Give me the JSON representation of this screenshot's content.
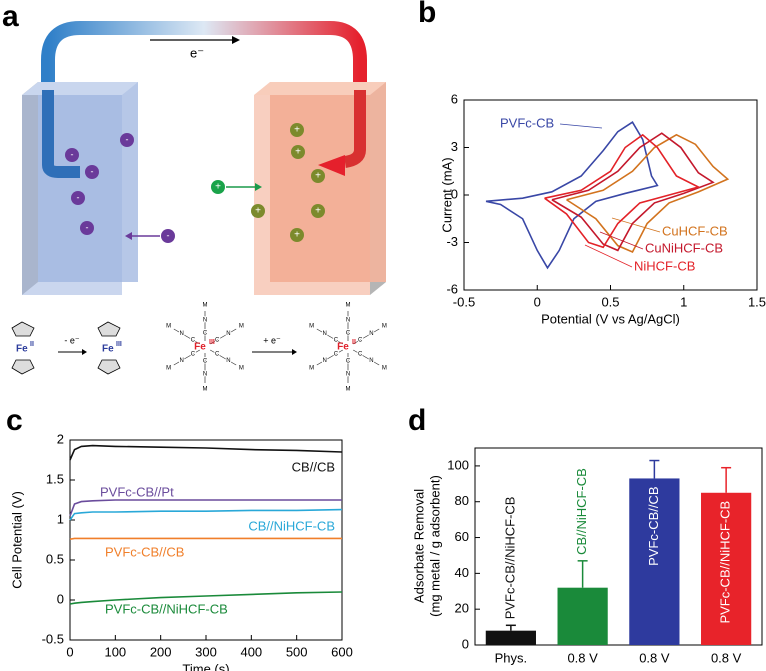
{
  "diagram": {
    "panel": "a",
    "electron": "e⁻",
    "anion": "-",
    "cation": "+",
    "iron": "Fe",
    "ox2": "II",
    "ox3": "III",
    "oxidation": "- e⁻",
    "reduction": "+ e⁻",
    "atoms": {
      "metal": "M",
      "carbon": "C",
      "nitrogen": "N"
    }
  },
  "chart_data": [
    {
      "type": "line",
      "panel": "b",
      "xlabel": "Potential (V vs Ag/AgCl)",
      "ylabel": "Current (mA)",
      "xlim": [
        -0.5,
        1.5
      ],
      "xticks": [
        -0.5,
        0,
        0.5,
        1,
        1.5
      ],
      "ylim": [
        -6,
        6
      ],
      "yticks": [
        -6,
        -3,
        0,
        3,
        6
      ],
      "series": [
        {
          "name": "PVFc-CB",
          "color": "#3947a6",
          "x": [
            -0.35,
            -0.1,
            0.1,
            0.3,
            0.45,
            0.55,
            0.65,
            0.72,
            0.78,
            0.82,
            0.6,
            0.4,
            0.25,
            0.15,
            0.07,
            0.0,
            -0.1,
            -0.25,
            -0.35
          ],
          "values": [
            -0.4,
            -0.2,
            0.2,
            1.2,
            2.8,
            4.0,
            4.6,
            3.5,
            1.2,
            0.6,
            0.1,
            -0.4,
            -1.5,
            -3.5,
            -4.6,
            -3.5,
            -1.5,
            -0.6,
            -0.4
          ]
        },
        {
          "name": "CuHCF-CB",
          "color": "#d2731e",
          "x": [
            0.2,
            0.45,
            0.65,
            0.8,
            0.95,
            1.08,
            1.2,
            1.3,
            1.1,
            0.9,
            0.75,
            0.65,
            0.55,
            0.4,
            0.2
          ],
          "values": [
            -0.3,
            0.3,
            1.5,
            3.0,
            3.8,
            3.2,
            1.8,
            1.0,
            0.2,
            -0.5,
            -1.8,
            -3.6,
            -3.2,
            -1.5,
            -0.3
          ]
        },
        {
          "name": "CuNiHCF-CB",
          "color": "#c4182c",
          "x": [
            0.1,
            0.35,
            0.55,
            0.7,
            0.85,
            0.98,
            1.1,
            1.2,
            1.0,
            0.8,
            0.65,
            0.55,
            0.45,
            0.3,
            0.1
          ],
          "values": [
            -0.3,
            0.3,
            1.5,
            3.0,
            3.9,
            3.0,
            1.4,
            0.8,
            0.1,
            -0.5,
            -1.8,
            -3.5,
            -3.1,
            -1.4,
            -0.3
          ]
        },
        {
          "name": "NiHCF-CB",
          "color": "#e32228",
          "x": [
            0.05,
            0.3,
            0.5,
            0.6,
            0.72,
            0.82,
            0.95,
            1.1,
            0.9,
            0.7,
            0.55,
            0.45,
            0.35,
            0.2,
            0.05
          ],
          "values": [
            -0.2,
            0.3,
            1.5,
            3.0,
            3.8,
            3.0,
            1.2,
            0.5,
            0.0,
            -0.5,
            -1.8,
            -3.3,
            -3.0,
            -1.2,
            -0.2
          ]
        }
      ]
    },
    {
      "type": "line",
      "panel": "c",
      "xlabel": "Time (s)",
      "ylabel": "Cell Potential (V)",
      "xlim": [
        0,
        600
      ],
      "xticks": [
        0,
        100,
        200,
        300,
        400,
        500,
        600
      ],
      "ylim": [
        -0.5,
        2
      ],
      "yticks": [
        -0.5,
        0,
        0.5,
        1,
        1.5,
        2
      ],
      "x": [
        0,
        10,
        25,
        50,
        100,
        200,
        300,
        400,
        500,
        600
      ],
      "series": [
        {
          "name": "CB//CB",
          "color": "#111111",
          "values": [
            1.75,
            1.88,
            1.92,
            1.93,
            1.92,
            1.91,
            1.9,
            1.88,
            1.87,
            1.85
          ]
        },
        {
          "name": "PVFc-CB//Pt",
          "color": "#6a4c9c",
          "values": [
            1.05,
            1.2,
            1.23,
            1.24,
            1.25,
            1.25,
            1.25,
            1.25,
            1.25,
            1.25
          ]
        },
        {
          "name": "CB//NiHCF-CB",
          "color": "#29a8d8",
          "values": [
            1.0,
            1.08,
            1.09,
            1.1,
            1.1,
            1.11,
            1.11,
            1.12,
            1.12,
            1.13
          ]
        },
        {
          "name": "PVFc-CB//CB",
          "color": "#f07f2a",
          "values": [
            0.76,
            0.77,
            0.77,
            0.77,
            0.77,
            0.77,
            0.77,
            0.77,
            0.77,
            0.77
          ]
        },
        {
          "name": "PVFc-CB//NiHCF-CB",
          "color": "#1a8a3a",
          "values": [
            -0.05,
            -0.04,
            -0.03,
            -0.02,
            0,
            0.03,
            0.05,
            0.07,
            0.09,
            0.1
          ]
        }
      ]
    },
    {
      "type": "bar",
      "panel": "d",
      "ylabel": [
        "Adsorbate Removal",
        "(mg metal / g adsorbent)"
      ],
      "categories": [
        "Phys.",
        "0.8 V",
        "0.8 V",
        "0.8 V"
      ],
      "bar_labels": [
        "PVFc-CB//NiHCF-CB",
        "CB//NiHCF-CB",
        "PVFc-CB//CB",
        "PVFc-CB//NiHCF-CB"
      ],
      "values": [
        8,
        32,
        93,
        85
      ],
      "errors": [
        3,
        15,
        10,
        14
      ],
      "colors": [
        "#111111",
        "#1a8a3a",
        "#2e3a9e",
        "#e8232a"
      ],
      "ylim": [
        0,
        110
      ],
      "yticks": [
        0,
        20,
        40,
        60,
        80,
        100
      ]
    }
  ]
}
